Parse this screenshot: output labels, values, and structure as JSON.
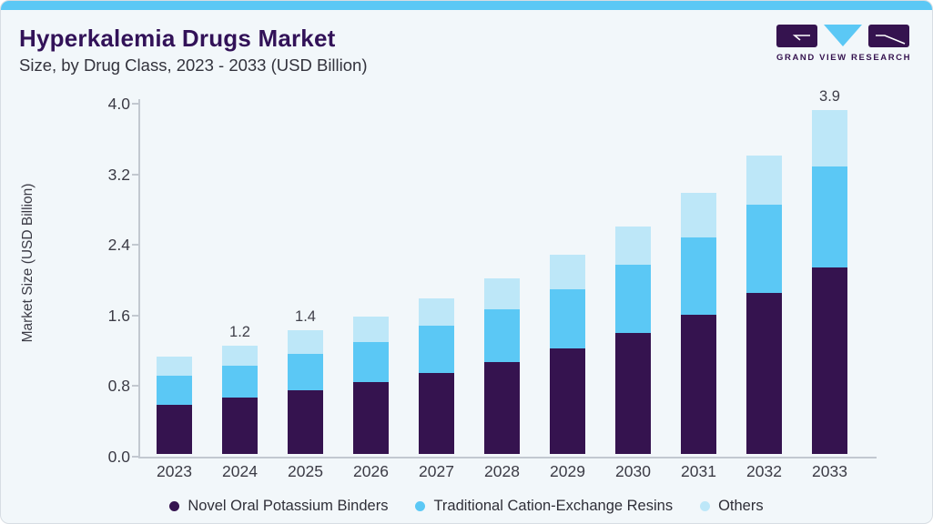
{
  "page": {
    "title": "Hyperkalemia Drugs Market",
    "subtitle": "Size, by Drug Class, 2023 - 2033 (USD Billion)",
    "brand": {
      "name": "GRAND VIEW RESEARCH"
    }
  },
  "colors": {
    "accent_bar": "#5bc8f5",
    "card_background": "#f2f7fa",
    "title_text": "#321258",
    "body_text": "#3b3b45",
    "axis_line": "#c2c8d0",
    "logo_purple": "#35134f",
    "logo_blue": "#5bc8f5"
  },
  "chart_data": {
    "type": "bar",
    "stacked": true,
    "title": "Hyperkalemia Drugs Market Size, by Drug Class, 2023 - 2033 (USD Billion)",
    "categories": [
      "2023",
      "2024",
      "2025",
      "2026",
      "2027",
      "2028",
      "2029",
      "2030",
      "2031",
      "2032",
      "2033"
    ],
    "series": [
      {
        "name": "Novel Oral Potassium Binders",
        "color": "#35134f",
        "values": [
          0.56,
          0.64,
          0.72,
          0.81,
          0.92,
          1.04,
          1.2,
          1.37,
          1.58,
          1.82,
          2.11
        ]
      },
      {
        "name": "Traditional Cation-Exchange Resins",
        "color": "#5bc8f5",
        "values": [
          0.33,
          0.36,
          0.41,
          0.46,
          0.53,
          0.6,
          0.67,
          0.77,
          0.87,
          1.0,
          1.15
        ]
      },
      {
        "name": "Others",
        "color": "#bde7f8",
        "values": [
          0.21,
          0.23,
          0.27,
          0.29,
          0.31,
          0.35,
          0.39,
          0.44,
          0.51,
          0.56,
          0.64
        ]
      }
    ],
    "totals_labels": [
      null,
      "1.2",
      "1.4",
      null,
      null,
      null,
      null,
      null,
      null,
      null,
      "3.9"
    ],
    "xlabel": "",
    "ylabel": "Market Size (USD Billion)",
    "ylim": [
      0,
      4.0
    ],
    "yticks": [
      "0.0",
      "0.8",
      "1.6",
      "2.4",
      "3.2",
      "4.0"
    ],
    "grid": false,
    "legend_position": "bottom"
  }
}
